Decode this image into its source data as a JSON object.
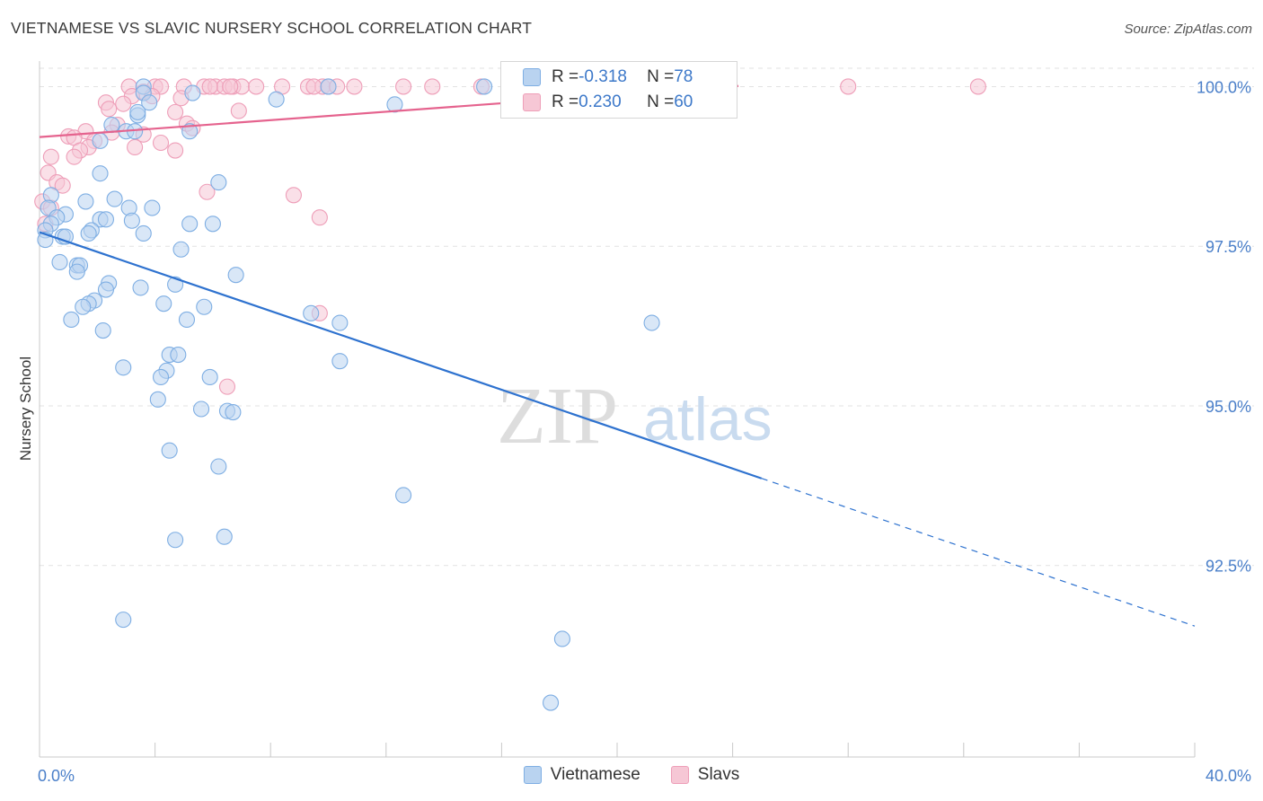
{
  "title": "VIETNAMESE VS SLAVIC NURSERY SCHOOL CORRELATION CHART",
  "source": "Source: ZipAtlas.com",
  "watermark": {
    "zip": "ZIP",
    "atlas": "atlas"
  },
  "colors": {
    "blue_fill": "#b9d3f0",
    "blue_stroke": "#7eaee3",
    "blue_line": "#2e72cf",
    "pink_fill": "#f6c7d5",
    "pink_stroke": "#ee9eb8",
    "pink_line": "#e5638e",
    "tick_label": "#4a7fc9",
    "grid": "#e2e2e2"
  },
  "legend": {
    "rows": [
      {
        "r_label": "R = ",
        "r_value": "-0.318",
        "n_label": "N = ",
        "n_value": "78",
        "series": "Vietnamese"
      },
      {
        "r_label": "R = ",
        "r_value": "0.230",
        "n_label": "N = ",
        "n_value": "60",
        "series": "Slavs"
      }
    ]
  },
  "bottom_legend": [
    "Vietnamese",
    "Slavs"
  ],
  "chart_data": {
    "type": "scatter",
    "title": "VIETNAMESE VS SLAVIC NURSERY SCHOOL CORRELATION CHART",
    "xlabel": "",
    "ylabel": "Nursery School",
    "xlim": [
      0,
      40
    ],
    "ylim": [
      89.5,
      100.4
    ],
    "x_tick_labels": [
      {
        "value": 0,
        "label": "0.0%"
      },
      {
        "value": 40,
        "label": "40.0%"
      }
    ],
    "x_minor_ticks": [
      4,
      8,
      12,
      16,
      20,
      24,
      28,
      32,
      36
    ],
    "y_ticks": [
      {
        "value": 100,
        "label": "100.0%"
      },
      {
        "value": 97.5,
        "label": "97.5%"
      },
      {
        "value": 95,
        "label": "95.0%"
      },
      {
        "value": 92.5,
        "label": "92.5%"
      }
    ],
    "grid": true,
    "series": [
      {
        "name": "Vietnamese",
        "r": -0.318,
        "n": 78,
        "trend": {
          "x0": 0,
          "y0": 97.72,
          "x_solid_end": 25.0,
          "x1": 40,
          "y1": 91.55
        },
        "points": [
          [
            3.6,
            100.0
          ],
          [
            15.4,
            100.0
          ],
          [
            10.0,
            100.0
          ],
          [
            3.6,
            99.9
          ],
          [
            5.3,
            99.9
          ],
          [
            8.2,
            99.8
          ],
          [
            12.3,
            99.72
          ],
          [
            3.8,
            99.75
          ],
          [
            3.4,
            99.55
          ],
          [
            2.5,
            99.4
          ],
          [
            3.0,
            99.3
          ],
          [
            3.3,
            99.3
          ],
          [
            5.2,
            99.3
          ],
          [
            2.1,
            98.64
          ],
          [
            6.2,
            98.5
          ],
          [
            0.4,
            98.3
          ],
          [
            2.6,
            98.24
          ],
          [
            1.6,
            98.2
          ],
          [
            3.1,
            98.1
          ],
          [
            3.9,
            98.1
          ],
          [
            0.3,
            98.1
          ],
          [
            0.9,
            98.0
          ],
          [
            0.6,
            97.95
          ],
          [
            2.1,
            97.92
          ],
          [
            2.3,
            97.92
          ],
          [
            3.2,
            97.9
          ],
          [
            0.4,
            97.85
          ],
          [
            5.2,
            97.85
          ],
          [
            6.0,
            97.85
          ],
          [
            0.2,
            97.75
          ],
          [
            1.8,
            97.75
          ],
          [
            3.6,
            97.7
          ],
          [
            1.7,
            97.7
          ],
          [
            0.8,
            97.65
          ],
          [
            0.9,
            97.65
          ],
          [
            0.2,
            97.6
          ],
          [
            4.9,
            97.45
          ],
          [
            0.7,
            97.25
          ],
          [
            1.3,
            97.2
          ],
          [
            1.4,
            97.2
          ],
          [
            1.3,
            97.1
          ],
          [
            6.8,
            97.05
          ],
          [
            4.7,
            96.9
          ],
          [
            2.4,
            96.92
          ],
          [
            3.5,
            96.85
          ],
          [
            2.3,
            96.82
          ],
          [
            1.9,
            96.65
          ],
          [
            1.7,
            96.6
          ],
          [
            4.3,
            96.6
          ],
          [
            5.7,
            96.55
          ],
          [
            1.5,
            96.55
          ],
          [
            9.4,
            96.45
          ],
          [
            1.1,
            96.35
          ],
          [
            5.1,
            96.35
          ],
          [
            10.4,
            96.3
          ],
          [
            21.2,
            96.3
          ],
          [
            2.2,
            96.18
          ],
          [
            4.5,
            95.8
          ],
          [
            4.8,
            95.8
          ],
          [
            10.4,
            95.7
          ],
          [
            2.9,
            95.6
          ],
          [
            4.4,
            95.55
          ],
          [
            4.2,
            95.45
          ],
          [
            5.9,
            95.45
          ],
          [
            4.1,
            95.1
          ],
          [
            5.6,
            94.95
          ],
          [
            6.5,
            94.92
          ],
          [
            6.7,
            94.9
          ],
          [
            4.5,
            94.3
          ],
          [
            6.2,
            94.05
          ],
          [
            12.6,
            93.6
          ],
          [
            4.7,
            92.9
          ],
          [
            6.4,
            92.95
          ],
          [
            2.9,
            91.65
          ],
          [
            18.1,
            91.35
          ],
          [
            17.7,
            90.35
          ],
          [
            2.1,
            99.15
          ],
          [
            3.4,
            99.6
          ]
        ]
      },
      {
        "name": "Slavs",
        "r": 0.23,
        "n": 60,
        "trend": {
          "x0": 0,
          "y0": 99.21,
          "x1": 24.2,
          "y1": 100.01
        },
        "points": [
          [
            3.1,
            100.0
          ],
          [
            4.0,
            100.0
          ],
          [
            4.2,
            100.0
          ],
          [
            5.0,
            100.0
          ],
          [
            5.7,
            100.0
          ],
          [
            6.1,
            100.0
          ],
          [
            6.4,
            100.0
          ],
          [
            6.7,
            100.0
          ],
          [
            7.0,
            100.0
          ],
          [
            7.5,
            100.0
          ],
          [
            8.4,
            100.0
          ],
          [
            9.3,
            100.0
          ],
          [
            9.8,
            100.0
          ],
          [
            10.0,
            100.0
          ],
          [
            10.3,
            100.0
          ],
          [
            10.9,
            100.0
          ],
          [
            12.6,
            100.0
          ],
          [
            13.6,
            100.0
          ],
          [
            15.3,
            100.0
          ],
          [
            28.0,
            100.0
          ],
          [
            32.5,
            100.0
          ],
          [
            6.6,
            100.0
          ],
          [
            5.9,
            100.0
          ],
          [
            9.5,
            100.0
          ],
          [
            3.6,
            99.92
          ],
          [
            3.9,
            99.85
          ],
          [
            3.2,
            99.85
          ],
          [
            4.9,
            99.82
          ],
          [
            2.3,
            99.75
          ],
          [
            2.9,
            99.73
          ],
          [
            2.4,
            99.65
          ],
          [
            4.7,
            99.6
          ],
          [
            6.9,
            99.62
          ],
          [
            5.1,
            99.42
          ],
          [
            2.7,
            99.4
          ],
          [
            5.3,
            99.35
          ],
          [
            1.6,
            99.3
          ],
          [
            2.5,
            99.28
          ],
          [
            3.6,
            99.25
          ],
          [
            1.0,
            99.22
          ],
          [
            1.2,
            99.2
          ],
          [
            1.9,
            99.15
          ],
          [
            4.2,
            99.12
          ],
          [
            1.7,
            99.05
          ],
          [
            1.4,
            99.0
          ],
          [
            3.3,
            99.05
          ],
          [
            4.7,
            99.0
          ],
          [
            0.4,
            98.9
          ],
          [
            1.2,
            98.9
          ],
          [
            0.3,
            98.65
          ],
          [
            0.6,
            98.5
          ],
          [
            0.8,
            98.45
          ],
          [
            5.8,
            98.35
          ],
          [
            8.8,
            98.3
          ],
          [
            0.1,
            98.2
          ],
          [
            0.4,
            98.1
          ],
          [
            0.2,
            97.85
          ],
          [
            9.7,
            97.95
          ],
          [
            9.7,
            96.45
          ],
          [
            6.5,
            95.3
          ]
        ]
      }
    ]
  }
}
